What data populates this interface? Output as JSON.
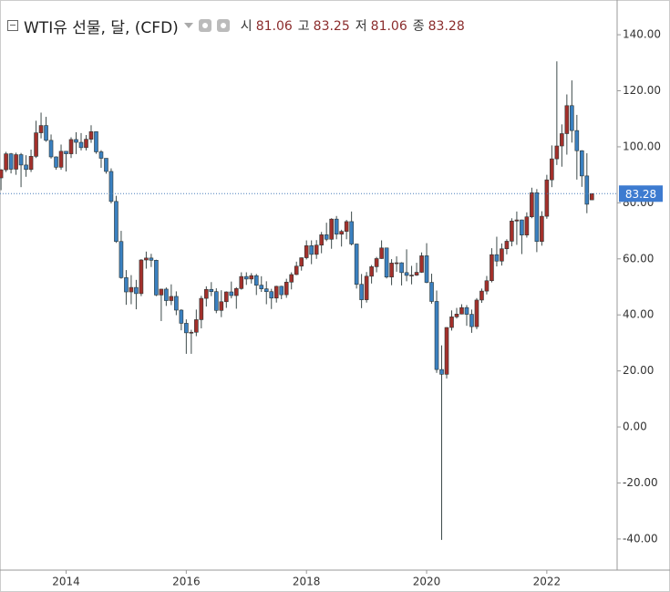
{
  "chart_data": {
    "type": "candlestick",
    "title": "WTI유 선물, 달, (CFD)",
    "ohlc_labels": [
      "시",
      "고",
      "저",
      "종"
    ],
    "x": [
      "2012-12",
      "2013-01",
      "2013-02",
      "2013-03",
      "2013-04",
      "2013-05",
      "2013-06",
      "2013-07",
      "2013-08",
      "2013-09",
      "2013-10",
      "2013-11",
      "2013-12",
      "2014-01",
      "2014-02",
      "2014-03",
      "2014-04",
      "2014-05",
      "2014-06",
      "2014-07",
      "2014-08",
      "2014-09",
      "2014-10",
      "2014-11",
      "2014-12",
      "2015-01",
      "2015-02",
      "2015-03",
      "2015-04",
      "2015-05",
      "2015-06",
      "2015-07",
      "2015-08",
      "2015-09",
      "2015-10",
      "2015-11",
      "2015-12",
      "2016-01",
      "2016-02",
      "2016-03",
      "2016-04",
      "2016-05",
      "2016-06",
      "2016-07",
      "2016-08",
      "2016-09",
      "2016-10",
      "2016-11",
      "2016-12",
      "2017-01",
      "2017-02",
      "2017-03",
      "2017-04",
      "2017-05",
      "2017-06",
      "2017-07",
      "2017-08",
      "2017-09",
      "2017-10",
      "2017-11",
      "2017-12",
      "2018-01",
      "2018-02",
      "2018-03",
      "2018-04",
      "2018-05",
      "2018-06",
      "2018-07",
      "2018-08",
      "2018-09",
      "2018-10",
      "2018-11",
      "2018-12",
      "2019-01",
      "2019-02",
      "2019-03",
      "2019-04",
      "2019-05",
      "2019-06",
      "2019-07",
      "2019-08",
      "2019-09",
      "2019-10",
      "2019-11",
      "2019-12",
      "2020-01",
      "2020-02",
      "2020-03",
      "2020-04",
      "2020-05",
      "2020-06",
      "2020-07",
      "2020-08",
      "2020-09",
      "2020-10",
      "2020-11",
      "2020-12",
      "2021-01",
      "2021-02",
      "2021-03",
      "2021-04",
      "2021-05",
      "2021-06",
      "2021-07",
      "2021-08",
      "2021-09",
      "2021-10",
      "2021-11",
      "2021-12",
      "2022-01",
      "2022-02",
      "2022-03",
      "2022-04",
      "2022-05",
      "2022-06",
      "2022-07",
      "2022-08",
      "2022-09",
      "2022-10"
    ],
    "open": [
      88.9,
      91.8,
      97.5,
      92.0,
      97.2,
      93.5,
      91.9,
      96.6,
      105.0,
      107.6,
      102.3,
      96.4,
      92.7,
      98.4,
      97.5,
      102.6,
      101.6,
      99.7,
      102.7,
      105.4,
      98.2,
      95.9,
      91.2,
      80.5,
      66.2,
      53.3,
      48.2,
      49.8,
      47.6,
      59.6,
      60.3,
      59.5,
      47.1,
      49.2,
      45.1,
      46.6,
      41.7,
      37.0,
      33.6,
      33.8,
      38.3,
      45.9,
      49.1,
      48.3,
      41.6,
      44.7,
      48.2,
      46.9,
      49.4,
      53.7,
      52.8,
      54.0,
      50.6,
      49.3,
      48.3,
      46.0,
      50.2,
      47.2,
      51.7,
      54.4,
      57.4,
      60.4,
      64.7,
      61.6,
      64.9,
      68.6,
      67.0,
      74.2,
      68.8,
      69.8,
      73.3,
      65.3,
      50.9,
      45.4,
      53.8,
      57.2,
      60.1,
      63.9,
      53.5,
      58.5,
      58.6,
      55.1,
      54.1,
      54.2,
      55.2,
      61.1,
      51.6,
      44.8,
      20.5,
      18.8,
      35.5,
      39.3,
      40.3,
      42.6,
      40.2,
      35.8,
      45.3,
      48.5,
      52.2,
      61.5,
      59.2,
      63.6,
      66.3,
      73.5,
      73.9,
      68.5,
      75.0,
      83.6,
      66.2,
      75.2,
      88.2,
      95.7,
      100.3,
      104.7,
      114.7,
      105.8,
      98.6,
      89.6,
      81.06
    ],
    "high": [
      92.0,
      98.2,
      97.8,
      97.9,
      97.8,
      97.0,
      99.0,
      109.3,
      112.2,
      110.7,
      104.4,
      96.6,
      100.8,
      98.5,
      103.4,
      105.2,
      104.9,
      104.2,
      107.7,
      105.5,
      98.8,
      95.9,
      92.3,
      82.5,
      70.0,
      56.0,
      54.2,
      52.5,
      59.9,
      62.6,
      61.8,
      59.7,
      49.3,
      49.8,
      50.9,
      48.4,
      42.0,
      38.4,
      34.7,
      41.9,
      46.8,
      50.2,
      51.7,
      49.5,
      48.8,
      48.4,
      51.9,
      49.9,
      55.2,
      55.2,
      54.9,
      54.6,
      53.8,
      52.0,
      49.3,
      50.4,
      50.4,
      52.9,
      55.2,
      59.0,
      60.5,
      66.6,
      66.6,
      66.7,
      69.6,
      72.9,
      74.5,
      75.3,
      70.4,
      73.9,
      76.9,
      65.4,
      54.6,
      55.3,
      57.8,
      60.7,
      66.6,
      63.9,
      59.9,
      60.9,
      58.8,
      63.4,
      57.5,
      58.6,
      62.3,
      65.6,
      54.7,
      48.7,
      29.1,
      35.6,
      41.6,
      42.5,
      43.8,
      43.5,
      41.9,
      46.0,
      49.4,
      53.9,
      63.8,
      67.9,
      65.5,
      67.0,
      74.5,
      76.9,
      74.0,
      76.6,
      85.4,
      84.9,
      77.0,
      90.0,
      100.5,
      130.5,
      108.0,
      118.7,
      123.7,
      111.4,
      98.8,
      97.7,
      83.25
    ],
    "low": [
      84.5,
      91.0,
      90.5,
      90.0,
      85.6,
      89.3,
      91.0,
      96.0,
      103.0,
      101.8,
      95.8,
      91.8,
      91.8,
      91.2,
      96.0,
      97.4,
      98.7,
      98.7,
      101.4,
      97.5,
      92.5,
      90.4,
      79.8,
      65.7,
      52.9,
      43.6,
      43.8,
      42.0,
      46.7,
      56.5,
      57.1,
      46.7,
      37.8,
      43.2,
      43.5,
      39.9,
      34.5,
      26.1,
      26.1,
      32.4,
      35.2,
      43.0,
      46.7,
      40.6,
      39.2,
      42.5,
      45.9,
      42.2,
      49.0,
      50.7,
      51.2,
      47.1,
      48.2,
      43.8,
      42.1,
      44.4,
      45.6,
      46.1,
      49.1,
      54.2,
      55.8,
      59.8,
      58.1,
      60.0,
      62.0,
      66.3,
      63.6,
      67.0,
      64.4,
      67.0,
      64.8,
      49.4,
      42.4,
      44.4,
      51.2,
      55.2,
      60.0,
      53.0,
      50.6,
      55.4,
      50.5,
      52.0,
      50.9,
      53.9,
      55.0,
      51.3,
      44.0,
      19.3,
      -40.3,
      17.3,
      34.4,
      38.7,
      40.2,
      36.1,
      33.6,
      34.9,
      44.3,
      47.3,
      51.6,
      57.3,
      57.6,
      61.6,
      64.5,
      65.0,
      61.7,
      67.6,
      74.5,
      62.4,
      64.7,
      74.3,
      85.6,
      93.5,
      92.9,
      97.2,
      101.5,
      88.3,
      85.7,
      76.3,
      81.06
    ],
    "close": [
      91.8,
      97.5,
      92.0,
      97.2,
      93.5,
      91.9,
      96.6,
      105.0,
      107.6,
      102.3,
      96.4,
      92.7,
      98.4,
      97.5,
      102.6,
      101.6,
      99.7,
      102.7,
      105.4,
      98.2,
      95.9,
      91.2,
      80.5,
      66.2,
      53.3,
      48.2,
      49.8,
      47.6,
      59.6,
      60.3,
      59.5,
      47.1,
      49.2,
      45.1,
      46.6,
      41.7,
      37.0,
      33.6,
      33.8,
      38.3,
      45.9,
      49.1,
      48.3,
      41.6,
      44.7,
      48.2,
      46.9,
      49.4,
      53.7,
      52.8,
      54.0,
      50.6,
      49.3,
      48.3,
      46.0,
      50.2,
      47.2,
      51.7,
      54.4,
      57.4,
      60.4,
      64.7,
      61.6,
      64.9,
      68.6,
      67.0,
      74.2,
      68.8,
      69.8,
      73.3,
      65.3,
      50.9,
      45.4,
      53.8,
      57.2,
      60.1,
      63.9,
      53.5,
      58.5,
      58.6,
      55.1,
      54.1,
      54.2,
      55.2,
      61.1,
      51.6,
      44.8,
      20.5,
      18.8,
      35.5,
      39.3,
      40.3,
      42.6,
      40.2,
      35.8,
      45.3,
      48.5,
      52.2,
      61.5,
      59.2,
      63.6,
      66.3,
      73.5,
      73.9,
      68.5,
      75.0,
      83.6,
      66.2,
      75.2,
      88.2,
      95.7,
      100.3,
      104.7,
      114.7,
      105.8,
      98.6,
      89.6,
      79.5,
      83.28
    ],
    "up_color": "#a3302b",
    "down_color": "#3a80c0",
    "xlim": [
      2012.9,
      2023.17
    ],
    "xticks": [
      2014,
      2016,
      2018,
      2020,
      2022
    ],
    "ylim": [
      -51.1,
      152.4
    ],
    "yticks": [
      {
        "value": -40,
        "label": "-40.00"
      },
      {
        "value": -20,
        "label": "-20.00"
      },
      {
        "value": 0,
        "label": "0.00"
      },
      {
        "value": 20,
        "label": "20.00"
      },
      {
        "value": 40,
        "label": "40.00"
      },
      {
        "value": 60,
        "label": "60.00"
      },
      {
        "value": 80,
        "label": "80.00"
      },
      {
        "value": 100,
        "label": "100.00"
      },
      {
        "value": 120,
        "label": "120.00"
      },
      {
        "value": 140,
        "label": "140.00"
      }
    ],
    "grid": false
  }
}
